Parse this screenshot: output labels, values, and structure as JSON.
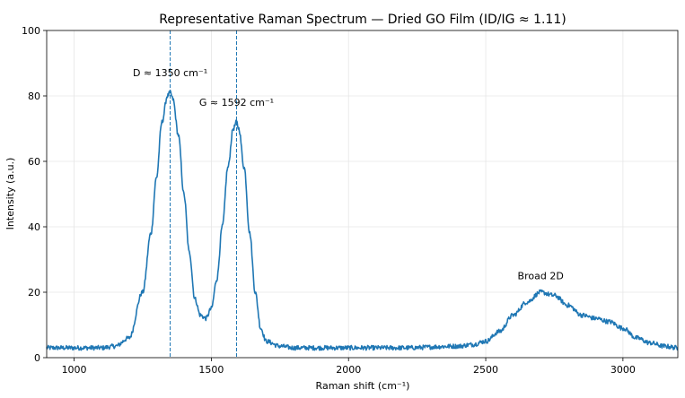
{
  "chart_data": {
    "type": "line",
    "title": "Representative Raman Spectrum — Dried GO Film (ID/IG ≈ 1.11)",
    "xlabel": "Raman shift (cm⁻¹)",
    "ylabel": "Intensity (a.u.)",
    "xlim": [
      900,
      3200
    ],
    "ylim": [
      0,
      100
    ],
    "xticks": [
      1000,
      1500,
      2000,
      2500,
      3000
    ],
    "yticks": [
      0,
      20,
      40,
      60,
      80,
      100
    ],
    "grid": true,
    "legend": "none",
    "series": [
      {
        "color": "#1f77b4",
        "x": [
          900,
          1000,
          1100,
          1150,
          1200,
          1250,
          1280,
          1300,
          1320,
          1340,
          1350,
          1360,
          1380,
          1400,
          1420,
          1440,
          1460,
          1480,
          1500,
          1520,
          1540,
          1560,
          1580,
          1592,
          1600,
          1620,
          1640,
          1660,
          1680,
          1700,
          1750,
          1800,
          2000,
          2200,
          2400,
          2450,
          2500,
          2550,
          2600,
          2650,
          2700,
          2750,
          2800,
          2850,
          2900,
          2950,
          3000,
          3050,
          3100,
          3150,
          3200
        ],
        "y": [
          3,
          3,
          3,
          3.5,
          6,
          20,
          38,
          55,
          72,
          80,
          81,
          79,
          68,
          50,
          32,
          18,
          13,
          12,
          15,
          24,
          40,
          58,
          70,
          72,
          70,
          58,
          38,
          20,
          9,
          5,
          3.5,
          3,
          3,
          3,
          3.5,
          4,
          5,
          8,
          13,
          17,
          20,
          19,
          16,
          13,
          12,
          11,
          9,
          6,
          4.5,
          3.5,
          3
        ]
      }
    ],
    "annotations": [
      {
        "text": "D ≈ 1350 cm⁻¹",
        "x": 1350,
        "y": 86
      },
      {
        "text": "G ≈ 1592 cm⁻¹",
        "x": 1592,
        "y": 77
      },
      {
        "text": "Broad 2D",
        "x": 2700,
        "y": 24
      }
    ],
    "vlines": [
      1350,
      1592
    ]
  }
}
